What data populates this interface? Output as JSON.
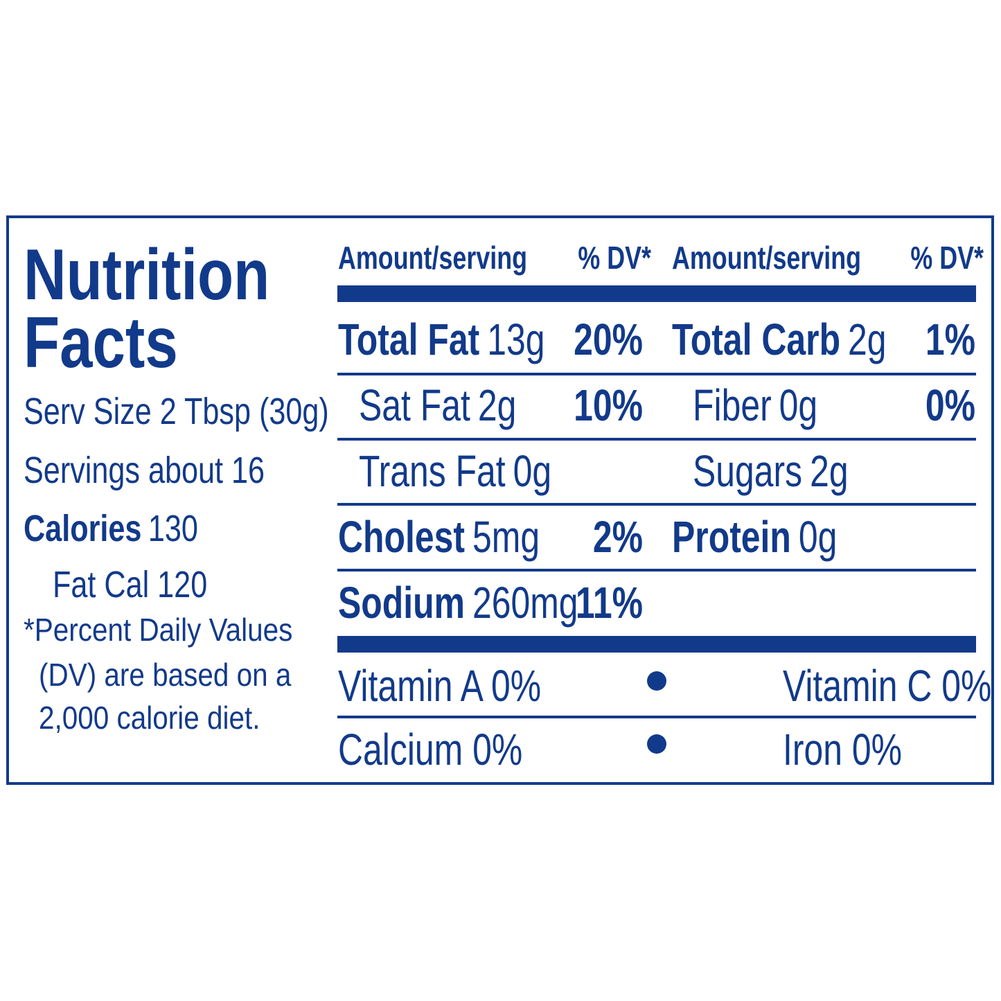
{
  "label": {
    "title": [
      "Nutrition",
      "Facts"
    ],
    "serving_size": "Serv Size 2 Tbsp (30g)",
    "servings": "Servings about 16",
    "calories": {
      "name": "Calories",
      "value": "130"
    },
    "fat_calories": "Fat Cal 120",
    "footnote": [
      "*Percent Daily Values",
      "(DV) are based on a",
      "2,000 calorie diet."
    ],
    "header": [
      "Amount/serving",
      "% DV*",
      "Amount/serving",
      "% DV*"
    ],
    "rows": [
      [
        {
          "name": "Total Fat",
          "amount": "13g",
          "dv": "20%",
          "bold": true
        },
        {
          "name": "Total Carb",
          "amount": "2g",
          "dv": "1%",
          "bold": true
        }
      ],
      [
        {
          "name": "Sat Fat",
          "amount": "2g",
          "dv": "10%"
        },
        {
          "name": "Fiber",
          "amount": "0g",
          "dv": "0%"
        }
      ],
      [
        {
          "name": "Trans Fat",
          "amount": "0g"
        },
        {
          "name": "Sugars",
          "amount": "2g"
        }
      ],
      [
        {
          "name": "Cholest",
          "amount": "5mg",
          "dv": "2%",
          "bold": true
        },
        {
          "name": "Protein",
          "amount": "0g",
          "bold": true
        }
      ],
      [
        {
          "name": "Sodium",
          "amount": "260mg",
          "dv": "11%",
          "bold": true
        }
      ]
    ],
    "vitamins": [
      [
        "Vitamin A 0%",
        "Vitamin C 0%"
      ],
      [
        "Calcium 0%",
        "Iron 0%"
      ]
    ]
  }
}
